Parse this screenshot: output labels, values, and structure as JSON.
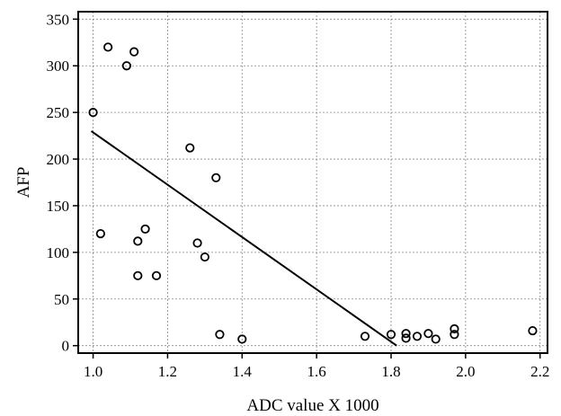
{
  "chart_data": {
    "type": "scatter",
    "xlabel": "ADC value X 1000",
    "ylabel": "AFP",
    "xlim": [
      0.96,
      2.22
    ],
    "ylim": [
      -8,
      358
    ],
    "x_ticks": [
      1.0,
      1.2,
      1.4,
      1.6,
      1.8,
      2.0,
      2.2
    ],
    "x_tick_labels": [
      "1.0",
      "1.2",
      "1.4",
      "1.6",
      "1.8",
      "2.0",
      "2.2"
    ],
    "y_ticks": [
      0,
      50,
      100,
      150,
      200,
      250,
      300,
      350
    ],
    "y_tick_labels": [
      "0",
      "50",
      "100",
      "150",
      "200",
      "250",
      "300",
      "350"
    ],
    "grid": true,
    "series": [
      {
        "points": [
          {
            "x": 1.0,
            "y": 250
          },
          {
            "x": 1.02,
            "y": 120
          },
          {
            "x": 1.04,
            "y": 320
          },
          {
            "x": 1.09,
            "y": 300
          },
          {
            "x": 1.11,
            "y": 315
          },
          {
            "x": 1.12,
            "y": 112
          },
          {
            "x": 1.12,
            "y": 75
          },
          {
            "x": 1.14,
            "y": 125
          },
          {
            "x": 1.17,
            "y": 75
          },
          {
            "x": 1.26,
            "y": 212
          },
          {
            "x": 1.28,
            "y": 110
          },
          {
            "x": 1.3,
            "y": 95
          },
          {
            "x": 1.33,
            "y": 180
          },
          {
            "x": 1.34,
            "y": 12
          },
          {
            "x": 1.4,
            "y": 7
          },
          {
            "x": 1.73,
            "y": 10
          },
          {
            "x": 1.8,
            "y": 12
          },
          {
            "x": 1.84,
            "y": 13
          },
          {
            "x": 1.84,
            "y": 8
          },
          {
            "x": 1.87,
            "y": 10
          },
          {
            "x": 1.9,
            "y": 13
          },
          {
            "x": 1.92,
            "y": 7
          },
          {
            "x": 1.97,
            "y": 18
          },
          {
            "x": 1.97,
            "y": 12
          },
          {
            "x": 2.18,
            "y": 16
          }
        ]
      }
    ],
    "fit_line": {
      "x": [
        0.995,
        1.815
      ],
      "y": [
        230,
        0
      ]
    }
  }
}
